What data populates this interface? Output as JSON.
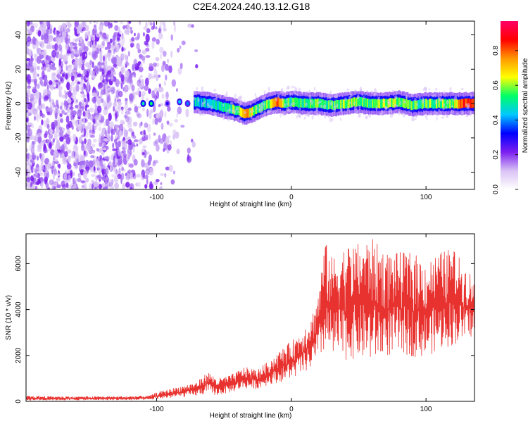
{
  "title": "C2E4.2024.240.13.12.G18",
  "colors": {
    "snr_line": "#e8322f",
    "colormap": [
      "#ffffff",
      "#d9c2f5",
      "#7b1ff0",
      "#0000ff",
      "#00c8ff",
      "#00ff66",
      "#ffff00",
      "#ff9900",
      "#ff0000",
      "#ff0066"
    ]
  },
  "chart_data": [
    {
      "type": "heatmap",
      "xlabel": "Height of straight line (km)",
      "ylabel": "Frequency (Hz)",
      "xlim": [
        -197,
        136
      ],
      "ylim": [
        -50,
        48
      ],
      "x_ticks": [
        -100,
        0,
        100
      ],
      "y_ticks": [
        -40,
        -20,
        0,
        20,
        40
      ],
      "x_tick_labels": [
        "-100",
        "0",
        "100"
      ],
      "y_tick_labels": [
        "-40",
        "-20",
        "0",
        "20",
        "40"
      ],
      "noise_region_x": [
        -197,
        -75
      ],
      "noise_density_x": [
        [
          -197,
          0.75
        ],
        [
          -120,
          0.7
        ],
        [
          -115,
          0.35
        ],
        [
          -100,
          0.35
        ],
        [
          -92,
          0.15
        ],
        [
          -75,
          0.05
        ]
      ],
      "ridge": {
        "x": [
          -72,
          -60,
          -50,
          -40,
          -35,
          -30,
          -25,
          -20,
          -15,
          -10,
          -5,
          0,
          10,
          20,
          30,
          40,
          50,
          60,
          70,
          80,
          90,
          100,
          110,
          120,
          130,
          136
        ],
        "freq": [
          1,
          0,
          -2,
          -4,
          -6,
          -5,
          -3,
          -1,
          0,
          1,
          0,
          1,
          0,
          0,
          -1,
          0,
          1,
          0,
          0,
          1,
          -1,
          0,
          0,
          0,
          0,
          0
        ],
        "intensity": [
          0.45,
          0.5,
          0.5,
          0.6,
          0.8,
          0.65,
          0.55,
          0.55,
          0.6,
          0.85,
          0.6,
          0.55,
          0.55,
          0.6,
          0.55,
          0.6,
          0.6,
          0.55,
          0.6,
          0.6,
          0.55,
          0.55,
          0.6,
          0.6,
          0.9,
          0.9
        ]
      },
      "colorbar": {
        "label": "Normalized spectral amplitude",
        "range": [
          0,
          0.97
        ],
        "ticks": [
          0.0,
          0.2,
          0.4,
          0.6,
          0.8
        ],
        "tick_labels": [
          "0.0",
          "0.2",
          "0.4",
          "0.6",
          "0.8"
        ]
      }
    },
    {
      "type": "line",
      "xlabel": "Height of straight line (km)",
      "ylabel": "SNR (10 * v/v)",
      "xlim": [
        -197,
        136
      ],
      "ylim": [
        0,
        7300
      ],
      "x_ticks": [
        -100,
        0,
        100
      ],
      "y_ticks": [
        0,
        2000,
        4000,
        6000
      ],
      "x_tick_labels": [
        "-100",
        "0",
        "100"
      ],
      "y_tick_labels": [
        "0",
        "2000",
        "4000",
        "6000"
      ],
      "x": [
        -197,
        -180,
        -160,
        -140,
        -120,
        -105,
        -100,
        -90,
        -80,
        -70,
        -62,
        -55,
        -45,
        -35,
        -25,
        -15,
        -5,
        5,
        15,
        20,
        25,
        30,
        40,
        50,
        60,
        70,
        80,
        90,
        100,
        110,
        120,
        130,
        136
      ],
      "envelope_max": [
        250,
        230,
        220,
        220,
        230,
        260,
        400,
        550,
        700,
        850,
        1300,
        1000,
        1150,
        1500,
        1400,
        1850,
        2400,
        2900,
        3700,
        4800,
        7000,
        6300,
        6800,
        6900,
        7100,
        6500,
        6500,
        6500,
        6100,
        6500,
        6700,
        5800,
        5500
      ],
      "envelope_min": [
        20,
        30,
        30,
        40,
        30,
        40,
        80,
        120,
        150,
        200,
        300,
        200,
        350,
        500,
        500,
        700,
        800,
        1000,
        1300,
        1500,
        1900,
        1600,
        1500,
        1600,
        1400,
        1700,
        1800,
        1700,
        1700,
        2000,
        2200,
        2500,
        2700
      ]
    }
  ]
}
